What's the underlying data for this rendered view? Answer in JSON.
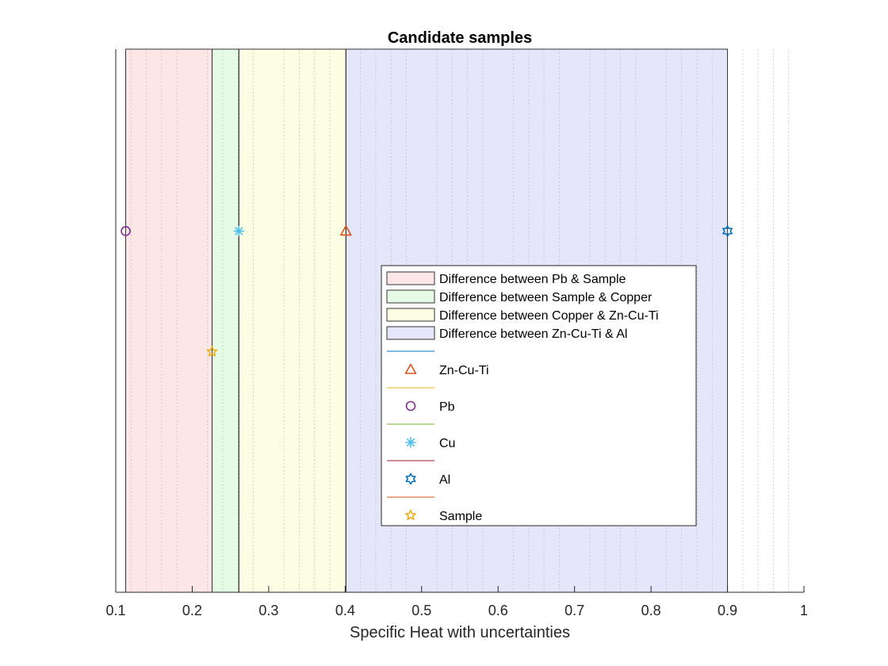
{
  "chart_data": {
    "type": "scatter",
    "title": "Candidate samples",
    "xlabel": "Specific Heat with uncertainties",
    "ylabel": "",
    "xlim": [
      0.1,
      1.0
    ],
    "ylim": [
      0,
      1
    ],
    "xticks": [
      0.1,
      0.2,
      0.3,
      0.4,
      0.5,
      0.6,
      0.7,
      0.8,
      0.9,
      1.0
    ],
    "tick_labels": [
      "0.1",
      "0.2",
      "0.3",
      "0.4",
      "0.5",
      "0.6",
      "0.7",
      "0.8",
      "0.9",
      "1"
    ],
    "minor_grid": true,
    "regions": [
      {
        "name": "Difference between Pb & Sample",
        "x0": 0.113,
        "x1": 0.226,
        "color": "#fde6e6"
      },
      {
        "name": "Difference between Sample & Copper",
        "x0": 0.226,
        "x1": 0.261,
        "color": "#e6fbe6"
      },
      {
        "name": "Difference between Copper & Zn-Cu-Ti",
        "x0": 0.261,
        "x1": 0.401,
        "color": "#fdfde3"
      },
      {
        "name": "Difference between Zn-Cu-Ti & Al",
        "x0": 0.401,
        "x1": 0.9,
        "color": "#e6e6fb"
      }
    ],
    "series": [
      {
        "name": "Zn-Cu-Ti",
        "x": 0.401,
        "y": 0.665,
        "marker": "triangle",
        "color": "#d95319",
        "line_color": "#0072bd"
      },
      {
        "name": "Pb",
        "x": 0.113,
        "y": 0.665,
        "marker": "circle",
        "color": "#7e2f8e",
        "line_color": "#edb120"
      },
      {
        "name": "Cu",
        "x": 0.261,
        "y": 0.665,
        "marker": "asterisk",
        "color": "#4dbeee",
        "line_color": "#77ac30"
      },
      {
        "name": "Al",
        "x": 0.9,
        "y": 0.665,
        "marker": "hexagram",
        "color": "#0072bd",
        "line_color": "#a2142f"
      },
      {
        "name": "Sample",
        "x": 0.226,
        "y": 0.443,
        "marker": "pentagram",
        "color": "#edb120",
        "line_color": "#d95319"
      }
    ],
    "legend_position": "center-right"
  }
}
